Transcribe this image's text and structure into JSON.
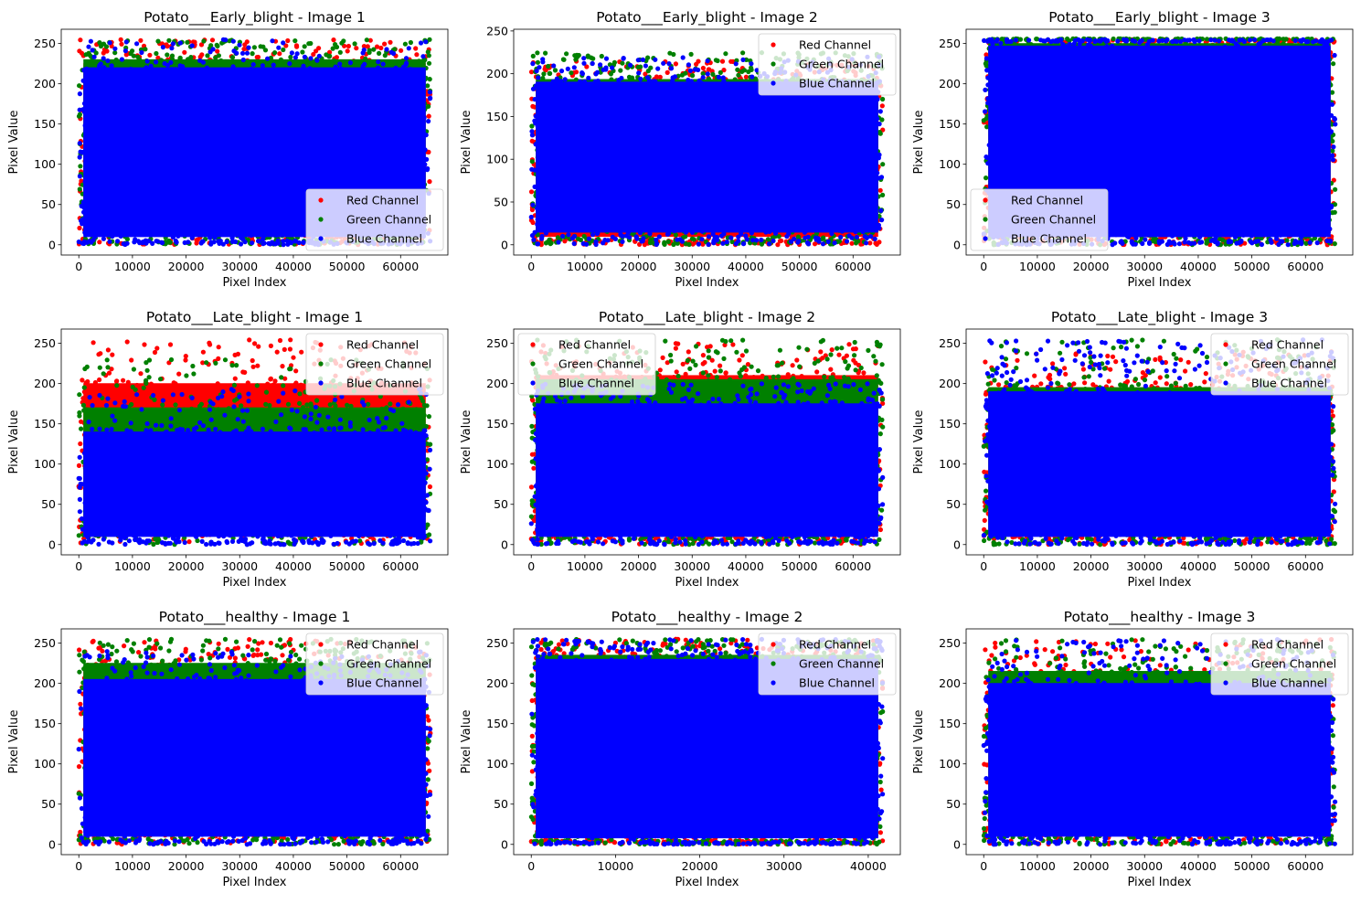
{
  "figure": {
    "legend_labels": [
      "Red Channel",
      "Green Channel",
      "Blue Channel"
    ],
    "colors": {
      "red": "#ff0000",
      "green": "#008000",
      "blue": "#0000ff"
    }
  },
  "chart_data": [
    {
      "type": "scatter",
      "title": "Potato___Early_blight - Image 1",
      "xlabel": "Pixel Index",
      "ylabel": "Pixel Value",
      "xlim": [
        -3277,
        68813
      ],
      "ylim": [
        -12.75,
        267.75
      ],
      "xticks": [
        0,
        10000,
        20000,
        30000,
        40000,
        50000,
        60000
      ],
      "yticks": [
        0,
        50,
        100,
        150,
        200,
        250
      ],
      "x_range": [
        0,
        65535
      ],
      "legend_loc": "lower right",
      "grid": false,
      "series": [
        {
          "name": "Red Channel",
          "color": "#ff0000",
          "min": 0,
          "max": 255,
          "typical_low": 15,
          "typical_high": 230
        },
        {
          "name": "Green Channel",
          "color": "#008000",
          "min": 0,
          "max": 255,
          "typical_low": 10,
          "typical_high": 235
        },
        {
          "name": "Blue Channel",
          "color": "#0000ff",
          "min": 0,
          "max": 255,
          "typical_low": 5,
          "typical_high": 225
        }
      ]
    },
    {
      "type": "scatter",
      "title": "Potato___Early_blight - Image 2",
      "xlabel": "Pixel Index",
      "ylabel": "Pixel Value",
      "xlim": [
        -3277,
        68813
      ],
      "ylim": [
        -12.0,
        252.0
      ],
      "xticks": [
        0,
        10000,
        20000,
        30000,
        40000,
        50000,
        60000
      ],
      "yticks": [
        0,
        50,
        100,
        150,
        200,
        250
      ],
      "x_range": [
        0,
        65535
      ],
      "legend_loc": "upper right",
      "grid": false,
      "series": [
        {
          "name": "Red Channel",
          "color": "#ff0000",
          "min": 0,
          "max": 215,
          "typical_low": 5,
          "typical_high": 195
        },
        {
          "name": "Green Channel",
          "color": "#008000",
          "min": 0,
          "max": 225,
          "typical_low": 10,
          "typical_high": 198
        },
        {
          "name": "Blue Channel",
          "color": "#0000ff",
          "min": 0,
          "max": 220,
          "typical_low": 10,
          "typical_high": 195
        }
      ]
    },
    {
      "type": "scatter",
      "title": "Potato___Early_blight - Image 3",
      "xlabel": "Pixel Index",
      "ylabel": "Pixel Value",
      "xlim": [
        -3277,
        68813
      ],
      "ylim": [
        -12.75,
        267.75
      ],
      "xticks": [
        0,
        10000,
        20000,
        30000,
        40000,
        50000,
        60000
      ],
      "yticks": [
        0,
        50,
        100,
        150,
        200,
        250
      ],
      "x_range": [
        0,
        65535
      ],
      "legend_loc": "lower left",
      "grid": false,
      "series": [
        {
          "name": "Red Channel",
          "color": "#ff0000",
          "min": 0,
          "max": 255,
          "typical_low": 10,
          "typical_high": 250
        },
        {
          "name": "Green Channel",
          "color": "#008000",
          "min": 0,
          "max": 255,
          "typical_low": 10,
          "typical_high": 255
        },
        {
          "name": "Blue Channel",
          "color": "#0000ff",
          "min": 0,
          "max": 255,
          "typical_low": 5,
          "typical_high": 252
        }
      ]
    },
    {
      "type": "scatter",
      "title": "Potato___Late_blight - Image 1",
      "xlabel": "Pixel Index",
      "ylabel": "Pixel Value",
      "xlim": [
        -3277,
        68813
      ],
      "ylim": [
        -12.75,
        267.75
      ],
      "xticks": [
        0,
        10000,
        20000,
        30000,
        40000,
        50000,
        60000
      ],
      "yticks": [
        0,
        50,
        100,
        150,
        200,
        250
      ],
      "x_range": [
        0,
        65535
      ],
      "legend_loc": "upper right",
      "grid": false,
      "series": [
        {
          "name": "Red Channel",
          "color": "#ff0000",
          "min": 0,
          "max": 255,
          "typical_low": 30,
          "typical_high": 205
        },
        {
          "name": "Green Channel",
          "color": "#008000",
          "min": 0,
          "max": 230,
          "typical_low": 20,
          "typical_high": 175
        },
        {
          "name": "Blue Channel",
          "color": "#0000ff",
          "min": 0,
          "max": 195,
          "typical_low": 5,
          "typical_high": 145
        }
      ]
    },
    {
      "type": "scatter",
      "title": "Potato___Late_blight - Image 2",
      "xlabel": "Pixel Index",
      "ylabel": "Pixel Value",
      "xlim": [
        -3277,
        68813
      ],
      "ylim": [
        -12.75,
        267.75
      ],
      "xticks": [
        0,
        10000,
        20000,
        30000,
        40000,
        50000,
        60000
      ],
      "yticks": [
        0,
        50,
        100,
        150,
        200,
        250
      ],
      "x_range": [
        0,
        65535
      ],
      "legend_loc": "upper left",
      "grid": false,
      "series": [
        {
          "name": "Red Channel",
          "color": "#ff0000",
          "min": 0,
          "max": 250,
          "typical_low": 10,
          "typical_high": 215
        },
        {
          "name": "Green Channel",
          "color": "#008000",
          "min": 0,
          "max": 255,
          "typical_low": 10,
          "typical_high": 210
        },
        {
          "name": "Blue Channel",
          "color": "#0000ff",
          "min": 0,
          "max": 200,
          "typical_low": 5,
          "typical_high": 180
        }
      ]
    },
    {
      "type": "scatter",
      "title": "Potato___Late_blight - Image 3",
      "xlabel": "Pixel Index",
      "ylabel": "Pixel Value",
      "xlim": [
        -3277,
        68813
      ],
      "ylim": [
        -12.75,
        267.75
      ],
      "xticks": [
        0,
        10000,
        20000,
        30000,
        40000,
        50000,
        60000
      ],
      "yticks": [
        0,
        50,
        100,
        150,
        200,
        250
      ],
      "x_range": [
        0,
        65535
      ],
      "legend_loc": "upper right",
      "grid": false,
      "series": [
        {
          "name": "Red Channel",
          "color": "#ff0000",
          "min": 0,
          "max": 240,
          "typical_low": 10,
          "typical_high": 200
        },
        {
          "name": "Green Channel",
          "color": "#008000",
          "min": 0,
          "max": 255,
          "typical_low": 10,
          "typical_high": 200
        },
        {
          "name": "Blue Channel",
          "color": "#0000ff",
          "min": 0,
          "max": 255,
          "typical_low": 5,
          "typical_high": 195
        }
      ]
    },
    {
      "type": "scatter",
      "title": "Potato___healthy - Image 1",
      "xlabel": "Pixel Index",
      "ylabel": "Pixel Value",
      "xlim": [
        -3277,
        68813
      ],
      "ylim": [
        -12.75,
        267.75
      ],
      "xticks": [
        0,
        10000,
        20000,
        30000,
        40000,
        50000,
        60000
      ],
      "yticks": [
        0,
        50,
        100,
        150,
        200,
        250
      ],
      "x_range": [
        0,
        65535
      ],
      "legend_loc": "upper right",
      "grid": false,
      "series": [
        {
          "name": "Red Channel",
          "color": "#ff0000",
          "min": 0,
          "max": 255,
          "typical_low": 15,
          "typical_high": 225
        },
        {
          "name": "Green Channel",
          "color": "#008000",
          "min": 0,
          "max": 255,
          "typical_low": 10,
          "typical_high": 230
        },
        {
          "name": "Blue Channel",
          "color": "#0000ff",
          "min": 0,
          "max": 240,
          "typical_low": 5,
          "typical_high": 210
        }
      ]
    },
    {
      "type": "scatter",
      "title": "Potato___healthy - Image 2",
      "xlabel": "Pixel Index",
      "ylabel": "Pixel Value",
      "xlim": [
        -2086,
        43807
      ],
      "ylim": [
        -12.75,
        267.75
      ],
      "xticks": [
        0,
        10000,
        20000,
        30000,
        40000
      ],
      "yticks": [
        0,
        50,
        100,
        150,
        200,
        250
      ],
      "x_range": [
        0,
        41721
      ],
      "legend_loc": "upper right",
      "grid": false,
      "series": [
        {
          "name": "Red Channel",
          "color": "#ff0000",
          "min": 0,
          "max": 255,
          "typical_low": 5,
          "typical_high": 240
        },
        {
          "name": "Green Channel",
          "color": "#008000",
          "min": 0,
          "max": 255,
          "typical_low": 5,
          "typical_high": 240
        },
        {
          "name": "Blue Channel",
          "color": "#0000ff",
          "min": 0,
          "max": 255,
          "typical_low": 3,
          "typical_high": 235
        }
      ]
    },
    {
      "type": "scatter",
      "title": "Potato___healthy - Image 3",
      "xlabel": "Pixel Index",
      "ylabel": "Pixel Value",
      "xlim": [
        -3277,
        68813
      ],
      "ylim": [
        -12.75,
        267.75
      ],
      "xticks": [
        0,
        10000,
        20000,
        30000,
        40000,
        50000,
        60000
      ],
      "yticks": [
        0,
        50,
        100,
        150,
        200,
        250
      ],
      "x_range": [
        0,
        65535
      ],
      "legend_loc": "upper right",
      "grid": false,
      "series": [
        {
          "name": "Red Channel",
          "color": "#ff0000",
          "min": 0,
          "max": 255,
          "typical_low": 15,
          "typical_high": 215
        },
        {
          "name": "Green Channel",
          "color": "#008000",
          "min": 0,
          "max": 255,
          "typical_low": 10,
          "typical_high": 220
        },
        {
          "name": "Blue Channel",
          "color": "#0000ff",
          "min": 0,
          "max": 255,
          "typical_low": 5,
          "typical_high": 205
        }
      ]
    }
  ]
}
